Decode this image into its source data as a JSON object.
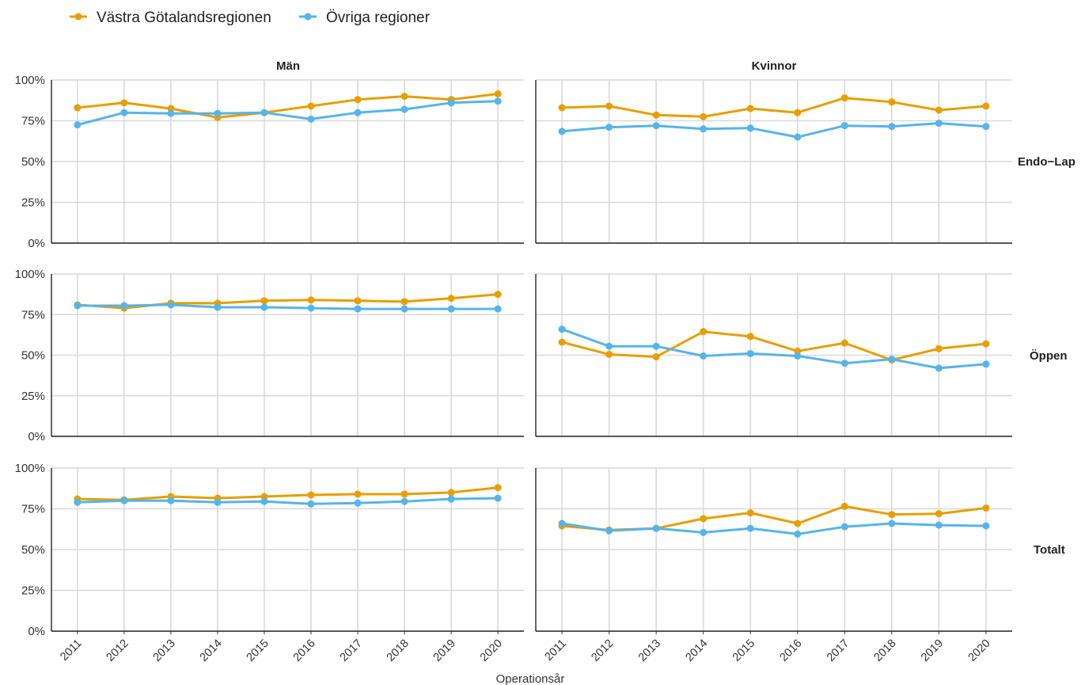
{
  "chart_data": {
    "type": "line",
    "xlabel": "Operationsår",
    "ylabel": "",
    "ylim": [
      0,
      100
    ],
    "y_ticks": [
      "0%",
      "25%",
      "50%",
      "75%",
      "100%"
    ],
    "x_ticks": [
      "2011",
      "2012",
      "2013",
      "2014",
      "2015",
      "2016",
      "2017",
      "2018",
      "2019",
      "2020"
    ],
    "x": [
      2011,
      2012,
      2013,
      2014,
      2015,
      2016,
      2017,
      2018,
      2019,
      2020
    ],
    "legend_position": "top-left",
    "grid": true,
    "legend": [
      {
        "name": "Västra Götalandsregionen",
        "color": "#E69F00"
      },
      {
        "name": "Övriga regioner",
        "color": "#56B4E9"
      }
    ],
    "col_facets": [
      "Män",
      "Kvinnor"
    ],
    "row_facets": [
      "Endo−Lap",
      "Öppen",
      "Totalt"
    ],
    "panels": [
      {
        "row": "Endo−Lap",
        "col": "Män",
        "series": [
          {
            "name": "Västra Götalandsregionen",
            "values": [
              83,
              86,
              82.5,
              77,
              80,
              84,
              88,
              90,
              88,
              91.5
            ]
          },
          {
            "name": "Övriga regioner",
            "values": [
              72.5,
              80,
              79.5,
              79.5,
              80,
              76,
              80,
              82,
              86,
              87
            ]
          }
        ]
      },
      {
        "row": "Endo−Lap",
        "col": "Kvinnor",
        "series": [
          {
            "name": "Västra Götalandsregionen",
            "values": [
              83,
              84,
              78.5,
              77.5,
              82.5,
              80,
              89,
              86.5,
              81.5,
              84
            ]
          },
          {
            "name": "Övriga regioner",
            "values": [
              68.5,
              71,
              72,
              70,
              70.5,
              65,
              72,
              71.5,
              73.5,
              71.5
            ]
          }
        ]
      },
      {
        "row": "Öppen",
        "col": "Män",
        "series": [
          {
            "name": "Västra Götalandsregionen",
            "values": [
              81,
              79,
              82,
              82,
              83.5,
              84,
              83.5,
              83,
              85,
              87.5
            ]
          },
          {
            "name": "Övriga regioner",
            "values": [
              80.5,
              80.5,
              81,
              79.5,
              79.5,
              79,
              78.5,
              78.5,
              78.5,
              78.5
            ]
          }
        ]
      },
      {
        "row": "Öppen",
        "col": "Kvinnor",
        "series": [
          {
            "name": "Västra Götalandsregionen",
            "values": [
              58,
              50.5,
              49,
              64.5,
              61.5,
              52.5,
              57.5,
              47,
              54,
              57
            ]
          },
          {
            "name": "Övriga regioner",
            "values": [
              66,
              55.5,
              55.5,
              49.5,
              51,
              49.5,
              45,
              47.5,
              42,
              44.5
            ]
          }
        ]
      },
      {
        "row": "Totalt",
        "col": "Män",
        "series": [
          {
            "name": "Västra Götalandsregionen",
            "values": [
              81,
              80.5,
              82.5,
              81.5,
              82.5,
              83.5,
              84,
              84,
              85,
              88
            ]
          },
          {
            "name": "Övriga regioner",
            "values": [
              79,
              80,
              80,
              79,
              79.5,
              78,
              78.5,
              79.5,
              81,
              81.5
            ]
          }
        ]
      },
      {
        "row": "Totalt",
        "col": "Kvinnor",
        "series": [
          {
            "name": "Västra Götalandsregionen",
            "values": [
              64.5,
              62,
              63,
              69,
              72.5,
              66,
              76.5,
              71.5,
              72,
              75.5
            ]
          },
          {
            "name": "Övriga regioner",
            "values": [
              66,
              61.5,
              63,
              60.5,
              63,
              59.5,
              64,
              66,
              65,
              64.5
            ]
          }
        ]
      }
    ]
  }
}
